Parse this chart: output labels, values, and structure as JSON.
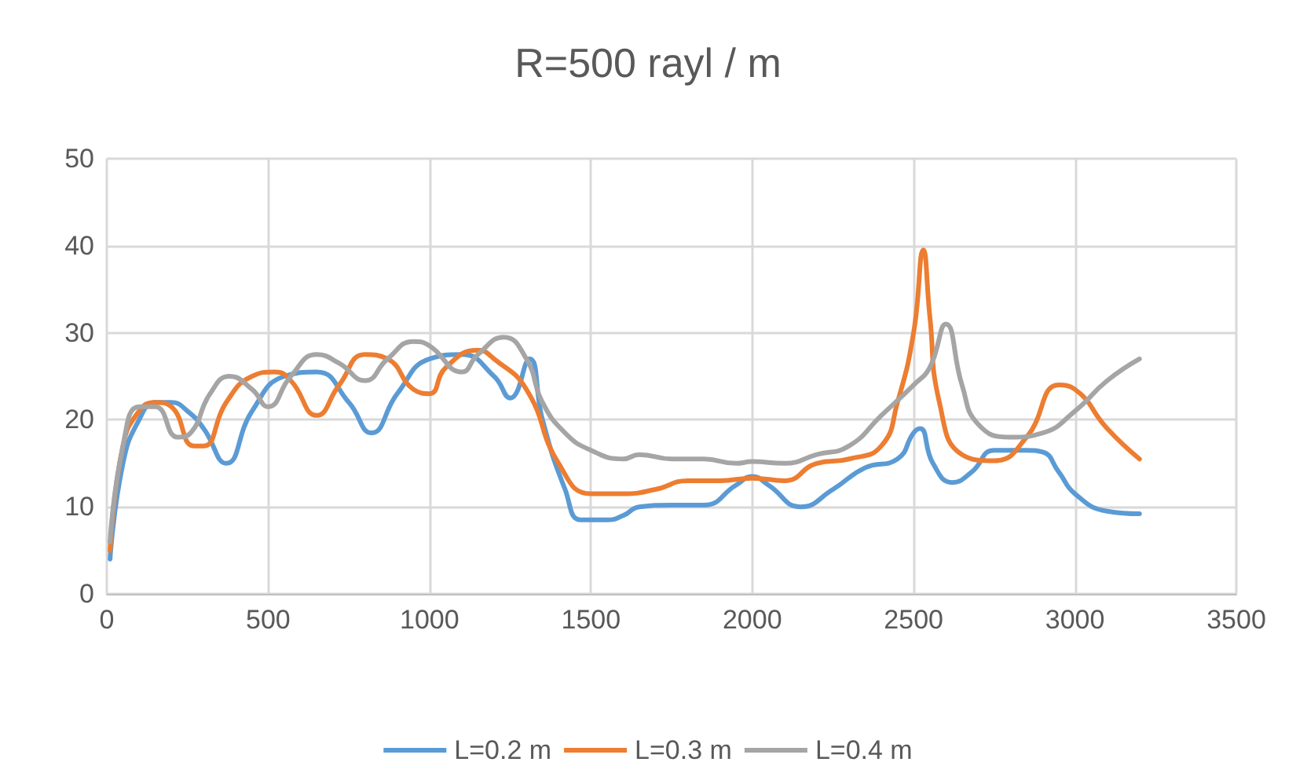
{
  "chart_data": {
    "type": "line",
    "title": "R=500 rayl / m",
    "xlim": [
      0,
      3500
    ],
    "xticks": [
      0,
      500,
      1000,
      1500,
      2000,
      2500,
      3000,
      3500
    ],
    "ylim": [
      0,
      50
    ],
    "yticks": [
      0,
      10,
      20,
      30,
      40,
      50
    ],
    "grid": true,
    "legend": "bottom",
    "marker": "none",
    "line_style": "solid",
    "series": [
      {
        "name": "L=0.2 m",
        "color": "#5b9bd5",
        "x": [
          10,
          50,
          100,
          150,
          200,
          250,
          300,
          370,
          450,
          550,
          650,
          750,
          820,
          900,
          1000,
          1100,
          1200,
          1250,
          1310,
          1350,
          1420,
          1470,
          1550,
          1600,
          1650,
          1750,
          1850,
          1950,
          2000,
          2050,
          2150,
          2250,
          2350,
          2450,
          2500,
          2520,
          2560,
          2620,
          2680,
          2750,
          2850,
          2900,
          2950,
          3000,
          3100,
          3200
        ],
        "values": [
          4,
          15,
          20,
          22,
          22,
          21,
          19,
          15,
          21,
          25,
          25.5,
          22,
          18.5,
          23,
          27,
          27.5,
          25,
          22.5,
          27,
          20,
          12,
          8.5,
          8.5,
          9,
          10,
          10.2,
          10.2,
          12.5,
          13.5,
          12.5,
          10,
          12,
          14.5,
          15.5,
          18.5,
          19,
          15,
          12.8,
          14,
          16.5,
          16.5,
          16.3,
          14,
          11.5,
          9.5,
          9.2
        ]
      },
      {
        "name": "L=0.3 m",
        "color": "#ed7d31",
        "x": [
          10,
          50,
          100,
          150,
          200,
          270,
          300,
          370,
          450,
          520,
          570,
          650,
          720,
          800,
          870,
          950,
          1000,
          1050,
          1150,
          1200,
          1300,
          1400,
          1500,
          1600,
          1700,
          1800,
          1900,
          2000,
          2100,
          2200,
          2300,
          2400,
          2450,
          2500,
          2530,
          2550,
          2580,
          2650,
          2750,
          2850,
          2950,
          3000,
          3100,
          3200
        ],
        "values": [
          5,
          17,
          21,
          22,
          21.5,
          17,
          17,
          22,
          25,
          25.5,
          24.5,
          20.5,
          24,
          27.5,
          27,
          23.5,
          23,
          26,
          28,
          27,
          23.5,
          15,
          11.5,
          11.5,
          12,
          13,
          13,
          13.3,
          13,
          15,
          15.5,
          17,
          22,
          30,
          39.5,
          32,
          22,
          16,
          15.3,
          18,
          24,
          23.5,
          19,
          15.5
        ]
      },
      {
        "name": "L=0.4 m",
        "color": "#a5a5a5",
        "x": [
          10,
          50,
          100,
          150,
          220,
          260,
          320,
          380,
          450,
          500,
          570,
          650,
          720,
          800,
          870,
          950,
          1000,
          1100,
          1150,
          1230,
          1300,
          1350,
          1420,
          1500,
          1600,
          1650,
          1750,
          1850,
          1950,
          2000,
          2100,
          2200,
          2300,
          2400,
          2500,
          2550,
          2600,
          2650,
          2700,
          2800,
          2900,
          3000,
          3100,
          3200
        ],
        "values": [
          6,
          17,
          21.5,
          21.5,
          18,
          18.5,
          23,
          25,
          23.5,
          21.5,
          25,
          27.5,
          26.5,
          24.5,
          27,
          29,
          28.5,
          25.5,
          27.5,
          29.5,
          27,
          22,
          18.5,
          16.5,
          15.5,
          16,
          15.5,
          15.5,
          15,
          15.2,
          15,
          16,
          17,
          20.5,
          24,
          26,
          31,
          24,
          19.5,
          18,
          18.5,
          21,
          24.5,
          27
        ]
      }
    ]
  }
}
